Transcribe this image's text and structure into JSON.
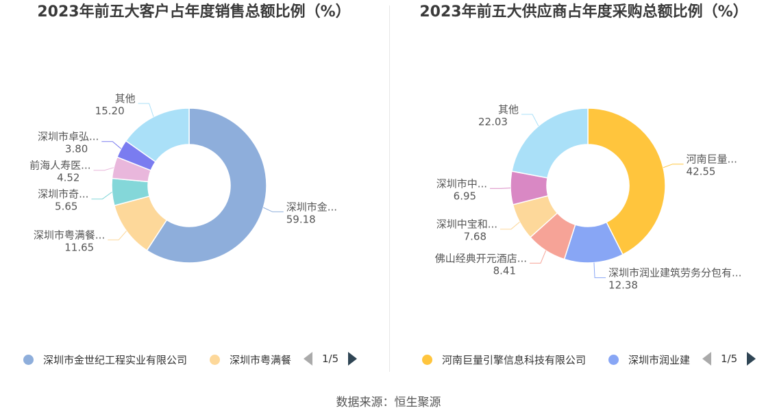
{
  "source": "数据来源：恒生聚源",
  "chart_data": [
    {
      "type": "pie",
      "title": "2023年前五大客户占年度销售总额比例（%）",
      "slices": [
        {
          "label": "深圳市金...",
          "value": 59.18,
          "color": "#8eaedb"
        },
        {
          "label": "深圳市粤满餐...",
          "value": 11.65,
          "color": "#fdd89a"
        },
        {
          "label": "深圳市奇...",
          "value": 5.65,
          "color": "#84d7d9"
        },
        {
          "label": "前海人寿医...",
          "value": 4.52,
          "color": "#e9b7dc"
        },
        {
          "label": "深圳市卓弘...",
          "value": 3.8,
          "color": "#7a7cf0"
        },
        {
          "label": "其他",
          "value": 15.2,
          "color": "#aae0f8"
        }
      ],
      "legend": {
        "items": [
          {
            "label": "深圳市金世纪工程实业有限公司",
            "color": "#8eaedb"
          },
          {
            "label": "深圳市粤满餐",
            "color": "#fdd89a"
          }
        ],
        "page": "1/5",
        "position": "bottom"
      }
    },
    {
      "type": "pie",
      "title": "2023年前五大供应商占年度采购总额比例（%）",
      "slices": [
        {
          "label": "河南巨量...",
          "value": 42.55,
          "color": "#ffc53d"
        },
        {
          "label": "深圳市润业建筑劳务分包有...",
          "value": 12.38,
          "color": "#88a6f5"
        },
        {
          "label": "佛山经典开元酒店...",
          "value": 8.41,
          "color": "#f6a397"
        },
        {
          "label": "深圳中宝和...",
          "value": 7.68,
          "color": "#fdd89a"
        },
        {
          "label": "深圳市中...",
          "value": 6.95,
          "color": "#d988c4"
        },
        {
          "label": "其他",
          "value": 22.03,
          "color": "#aae0f8"
        }
      ],
      "legend": {
        "items": [
          {
            "label": "河南巨量引擎信息科技有限公司",
            "color": "#ffc53d"
          },
          {
            "label": "深圳市润业建",
            "color": "#88a6f5"
          }
        ],
        "page": "1/5",
        "position": "bottom"
      }
    }
  ]
}
